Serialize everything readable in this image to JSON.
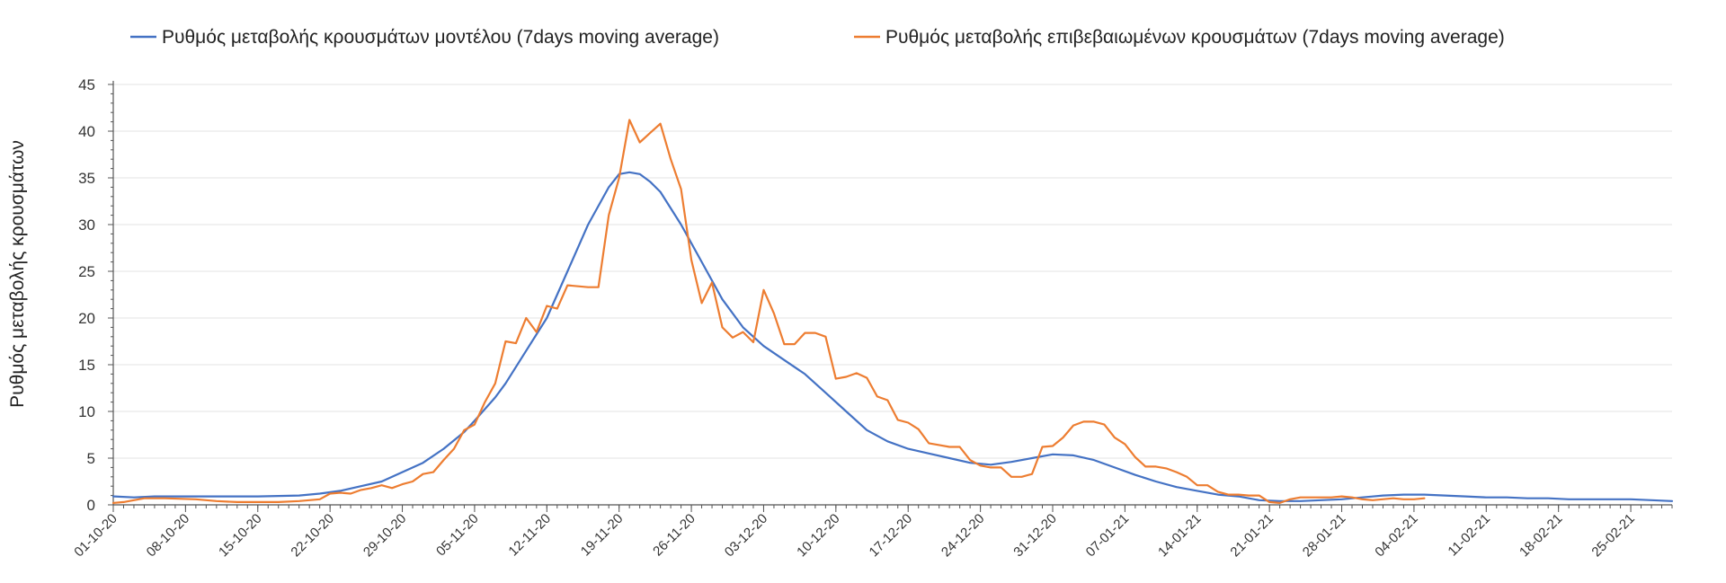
{
  "chart_data": {
    "type": "line",
    "title": "",
    "xlabel": "",
    "ylabel": "Ρυθμός μεταβολής κρουσμάτων",
    "ylim": [
      0,
      45
    ],
    "yticks": [
      0,
      5,
      10,
      15,
      20,
      25,
      30,
      35,
      40,
      45
    ],
    "xlim_days": [
      0,
      151
    ],
    "grid": true,
    "legend_position": "top",
    "x_tick_labels": [
      "01-10-20",
      "08-10-20",
      "15-10-20",
      "22-10-20",
      "29-10-20",
      "05-11-20",
      "12-11-20",
      "19-11-20",
      "26-11-20",
      "03-12-20",
      "10-12-20",
      "17-12-20",
      "24-12-20",
      "31-12-20",
      "07-01-21",
      "14-01-21",
      "21-01-21",
      "28-01-21",
      "04-02-21",
      "11-02-21",
      "18-02-21",
      "25-02-21"
    ],
    "x_tick_days": [
      0,
      7,
      14,
      21,
      28,
      35,
      42,
      49,
      56,
      63,
      70,
      77,
      84,
      91,
      98,
      105,
      112,
      119,
      126,
      133,
      140,
      147
    ],
    "series": [
      {
        "name": "Ρυθμός μεταβολής κρουσμάτων μοντέλου (7days moving average)",
        "color": "#4472c4",
        "points": [
          [
            0,
            0.9
          ],
          [
            2,
            0.8
          ],
          [
            4,
            0.9
          ],
          [
            8,
            0.9
          ],
          [
            14,
            0.9
          ],
          [
            18,
            1.0
          ],
          [
            20,
            1.2
          ],
          [
            22,
            1.5
          ],
          [
            24,
            2.0
          ],
          [
            26,
            2.5
          ],
          [
            28,
            3.5
          ],
          [
            30,
            4.5
          ],
          [
            32,
            6
          ],
          [
            34,
            7.8
          ],
          [
            35,
            9
          ],
          [
            37,
            11.5
          ],
          [
            38,
            13
          ],
          [
            40,
            16.5
          ],
          [
            42,
            20
          ],
          [
            44,
            25
          ],
          [
            46,
            30
          ],
          [
            48,
            34
          ],
          [
            49,
            35.4
          ],
          [
            50,
            35.6
          ],
          [
            51,
            35.4
          ],
          [
            52,
            34.6
          ],
          [
            53,
            33.5
          ],
          [
            55,
            30
          ],
          [
            57,
            26
          ],
          [
            59,
            22
          ],
          [
            61,
            19
          ],
          [
            63,
            17
          ],
          [
            65,
            15.5
          ],
          [
            67,
            14
          ],
          [
            69,
            12
          ],
          [
            71,
            10
          ],
          [
            73,
            8
          ],
          [
            75,
            6.8
          ],
          [
            77,
            6
          ],
          [
            79,
            5.5
          ],
          [
            81,
            5
          ],
          [
            83,
            4.5
          ],
          [
            85,
            4.3
          ],
          [
            87,
            4.6
          ],
          [
            89,
            5.0
          ],
          [
            91,
            5.4
          ],
          [
            93,
            5.3
          ],
          [
            95,
            4.8
          ],
          [
            97,
            4.0
          ],
          [
            99,
            3.2
          ],
          [
            101,
            2.5
          ],
          [
            103,
            1.9
          ],
          [
            105,
            1.5
          ],
          [
            107,
            1.1
          ],
          [
            109,
            0.9
          ],
          [
            111,
            0.5
          ],
          [
            113,
            0.4
          ],
          [
            115,
            0.4
          ],
          [
            117,
            0.5
          ],
          [
            119,
            0.6
          ],
          [
            121,
            0.8
          ],
          [
            123,
            1.0
          ],
          [
            125,
            1.1
          ],
          [
            127,
            1.1
          ],
          [
            129,
            1.0
          ],
          [
            131,
            0.9
          ],
          [
            133,
            0.8
          ],
          [
            135,
            0.8
          ],
          [
            137,
            0.7
          ],
          [
            139,
            0.7
          ],
          [
            141,
            0.6
          ],
          [
            143,
            0.6
          ],
          [
            145,
            0.6
          ],
          [
            147,
            0.6
          ],
          [
            149,
            0.5
          ],
          [
            151,
            0.4
          ]
        ]
      },
      {
        "name": "Ρυθμός μεταβολής επιβεβαιωμένων κρουσμάτων (7days moving average)",
        "color": "#ed7d31",
        "points": [
          [
            0,
            0.2
          ],
          [
            1,
            0.3
          ],
          [
            2,
            0.5
          ],
          [
            3,
            0.7
          ],
          [
            5,
            0.7
          ],
          [
            8,
            0.6
          ],
          [
            10,
            0.4
          ],
          [
            12,
            0.3
          ],
          [
            14,
            0.3
          ],
          [
            16,
            0.3
          ],
          [
            18,
            0.4
          ],
          [
            20,
            0.6
          ],
          [
            21,
            1.2
          ],
          [
            22,
            1.3
          ],
          [
            23,
            1.2
          ],
          [
            24,
            1.6
          ],
          [
            25,
            1.8
          ],
          [
            26,
            2.1
          ],
          [
            27,
            1.8
          ],
          [
            28,
            2.2
          ],
          [
            29,
            2.5
          ],
          [
            30,
            3.3
          ],
          [
            31,
            3.5
          ],
          [
            32,
            4.8
          ],
          [
            33,
            6
          ],
          [
            34,
            8
          ],
          [
            35,
            8.6
          ],
          [
            36,
            11
          ],
          [
            37,
            13
          ],
          [
            38,
            17.5
          ],
          [
            39,
            17.3
          ],
          [
            40,
            20
          ],
          [
            41,
            18.5
          ],
          [
            42,
            21.3
          ],
          [
            43,
            21
          ],
          [
            44,
            23.5
          ],
          [
            46,
            23.3
          ],
          [
            47,
            23.3
          ],
          [
            48,
            31
          ],
          [
            49,
            35
          ],
          [
            50,
            41.2
          ],
          [
            51,
            38.8
          ],
          [
            52,
            39.8
          ],
          [
            53,
            40.8
          ],
          [
            54,
            37
          ],
          [
            55,
            33.8
          ],
          [
            56,
            26.2
          ],
          [
            57,
            21.6
          ],
          [
            58,
            23.8
          ],
          [
            59,
            19
          ],
          [
            60,
            17.9
          ],
          [
            61,
            18.5
          ],
          [
            62,
            17.4
          ],
          [
            63,
            23
          ],
          [
            64,
            20.5
          ],
          [
            65,
            17.2
          ],
          [
            66,
            17.2
          ],
          [
            67,
            18.4
          ],
          [
            68,
            18.4
          ],
          [
            69,
            18
          ],
          [
            70,
            13.5
          ],
          [
            71,
            13.7
          ],
          [
            72,
            14.1
          ],
          [
            73,
            13.6
          ],
          [
            74,
            11.6
          ],
          [
            75,
            11.2
          ],
          [
            76,
            9.1
          ],
          [
            77,
            8.8
          ],
          [
            78,
            8.1
          ],
          [
            79,
            6.6
          ],
          [
            80,
            6.4
          ],
          [
            81,
            6.2
          ],
          [
            82,
            6.2
          ],
          [
            83,
            4.8
          ],
          [
            84,
            4.2
          ],
          [
            85,
            4.0
          ],
          [
            86,
            4.0
          ],
          [
            87,
            3.0
          ],
          [
            88,
            3.0
          ],
          [
            89,
            3.3
          ],
          [
            90,
            6.2
          ],
          [
            91,
            6.3
          ],
          [
            92,
            7.2
          ],
          [
            93,
            8.5
          ],
          [
            94,
            8.9
          ],
          [
            95,
            8.9
          ],
          [
            96,
            8.6
          ],
          [
            97,
            7.2
          ],
          [
            98,
            6.5
          ],
          [
            99,
            5.1
          ],
          [
            100,
            4.1
          ],
          [
            101,
            4.1
          ],
          [
            102,
            3.9
          ],
          [
            103,
            3.5
          ],
          [
            104,
            3.0
          ],
          [
            105,
            2.1
          ],
          [
            106,
            2.1
          ],
          [
            107,
            1.4
          ],
          [
            108,
            1.1
          ],
          [
            109,
            1.1
          ],
          [
            110,
            1.0
          ],
          [
            111,
            1.0
          ],
          [
            112,
            0.3
          ],
          [
            113,
            0.2
          ],
          [
            114,
            0.6
          ],
          [
            115,
            0.8
          ],
          [
            116,
            0.8
          ],
          [
            118,
            0.8
          ],
          [
            119,
            0.9
          ],
          [
            120,
            0.8
          ],
          [
            121,
            0.6
          ],
          [
            122,
            0.5
          ],
          [
            124,
            0.7
          ],
          [
            125,
            0.6
          ],
          [
            126,
            0.6
          ],
          [
            127,
            0.7
          ]
        ]
      }
    ]
  }
}
